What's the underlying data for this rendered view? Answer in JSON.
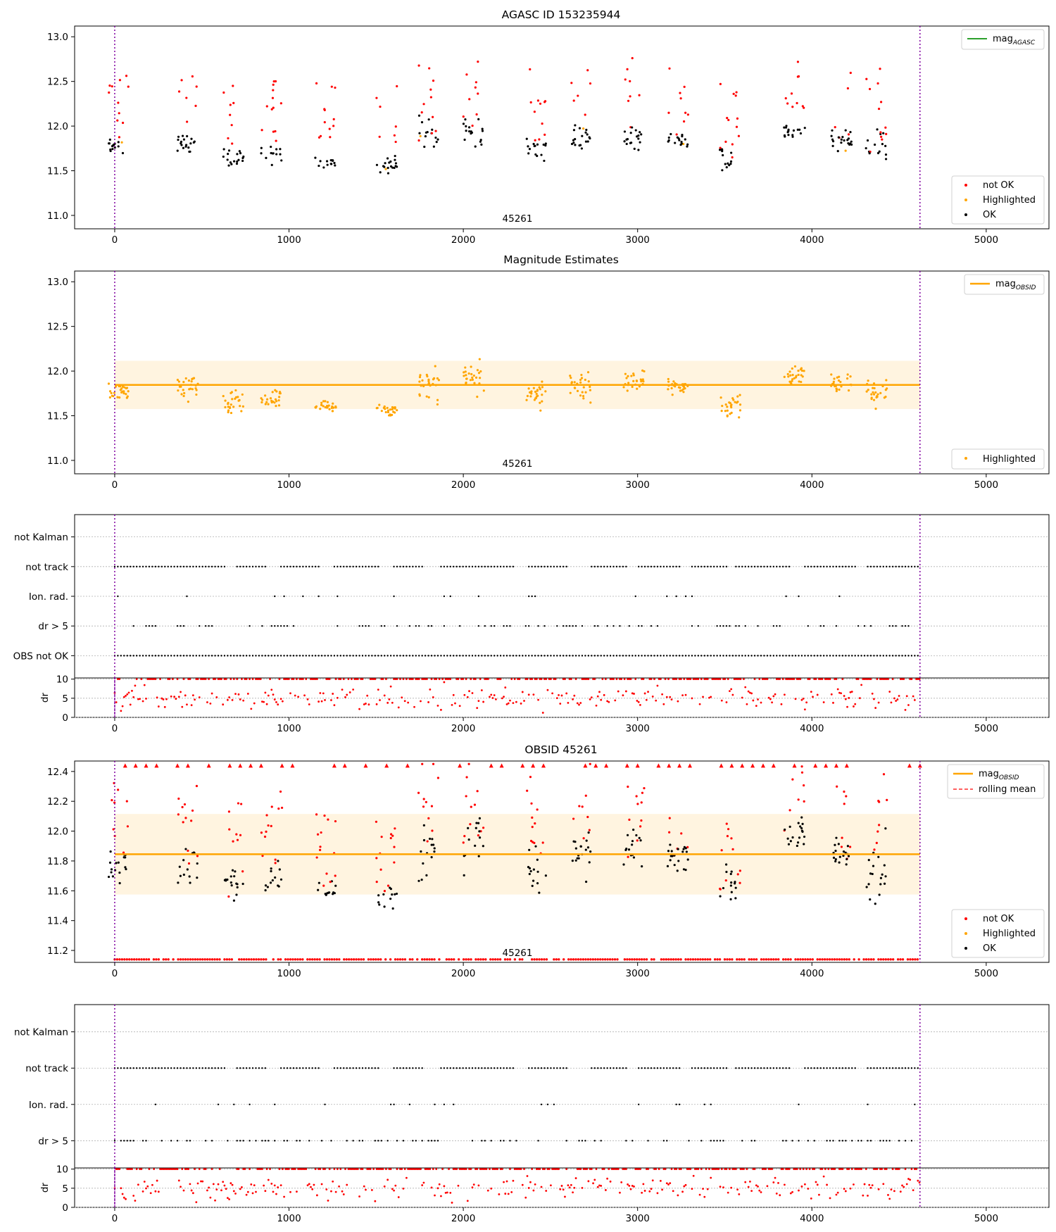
{
  "figure": {
    "obsid_label": "45261"
  },
  "chart_data": [
    {
      "type": "scatter",
      "title": "AGASC ID 153235944",
      "xlim": [
        -230,
        5360
      ],
      "ylim": [
        10.85,
        13.12
      ],
      "xticks": [
        0,
        1000,
        2000,
        3000,
        4000,
        5000
      ],
      "yticks": [
        11.0,
        11.5,
        12.0,
        12.5,
        13.0
      ],
      "ytick_labels": [
        "11.0",
        "11.5",
        "12.0",
        "12.5",
        "13.0"
      ],
      "vlines": [
        0,
        4620
      ],
      "annotation": {
        "text": "45261",
        "x": 2310,
        "y": 10.9
      },
      "legend_top": [
        {
          "label": "mag",
          "sub": "AGASC",
          "color": "#2ca02c"
        }
      ],
      "legend_bottom": [
        {
          "label": "not OK",
          "color": "#ff0000"
        },
        {
          "label": "Highlighted",
          "color": "#ffa500"
        },
        {
          "label": "OK",
          "color": "#000000"
        }
      ],
      "series_shape": "clusters",
      "ok_clusters": [
        [
          20,
          11.78,
          0.12
        ],
        [
          420,
          11.8,
          0.15
        ],
        [
          680,
          11.65,
          0.14
        ],
        [
          900,
          11.68,
          0.12
        ],
        [
          1210,
          11.6,
          0.07
        ],
        [
          1560,
          11.56,
          0.08
        ],
        [
          1800,
          11.85,
          0.2
        ],
        [
          2060,
          11.95,
          0.2
        ],
        [
          2420,
          11.75,
          0.15
        ],
        [
          2670,
          11.85,
          0.18
        ],
        [
          2980,
          11.88,
          0.15
        ],
        [
          3230,
          11.83,
          0.1
        ],
        [
          3530,
          11.62,
          0.14
        ],
        [
          3900,
          11.95,
          0.12
        ],
        [
          4170,
          11.85,
          0.15
        ],
        [
          4370,
          11.75,
          0.2
        ]
      ]
    },
    {
      "type": "scatter",
      "title": "Magnitude Estimates",
      "xlim": [
        -230,
        5360
      ],
      "ylim": [
        10.85,
        13.12
      ],
      "xticks": [
        0,
        1000,
        2000,
        3000,
        4000,
        5000
      ],
      "yticks": [
        11.0,
        11.5,
        12.0,
        12.5,
        13.0
      ],
      "ytick_labels": [
        "11.0",
        "11.5",
        "12.0",
        "12.5",
        "13.0"
      ],
      "vlines": [
        0,
        4620
      ],
      "hline": {
        "y": 11.845,
        "x0": 0,
        "x1": 4620,
        "color": "#ffa500"
      },
      "band": {
        "y0": 11.575,
        "y1": 12.115
      },
      "annotation": {
        "text": "45261",
        "x": 2310,
        "y": 10.9
      },
      "legend_top": [
        {
          "label": "mag",
          "sub": "OBSID",
          "color": "#ffa500"
        }
      ],
      "legend_bottom": [
        {
          "label": "Highlighted",
          "color": "#ffa500"
        }
      ]
    },
    {
      "type": "flags",
      "xlim": [
        -230,
        5360
      ],
      "categories": [
        "not Kalman",
        "not track",
        "Ion. rad.",
        "dr > 5",
        "OBS not OK"
      ],
      "dr_panel": {
        "ylabel": "dr",
        "yticks": [
          0,
          5,
          10
        ],
        "ylim": [
          0,
          10.3
        ]
      },
      "xticks": [
        0,
        1000,
        2000,
        3000,
        4000,
        5000
      ],
      "vlines": [
        0,
        4620
      ]
    },
    {
      "type": "scatter",
      "title": "OBSID 45261",
      "xlim": [
        -230,
        5360
      ],
      "ylim": [
        11.12,
        12.47
      ],
      "xticks": [
        0,
        1000,
        2000,
        3000,
        4000,
        5000
      ],
      "yticks": [
        11.2,
        11.4,
        11.6,
        11.8,
        12.0,
        12.2,
        12.4
      ],
      "ytick_labels": [
        "11.2",
        "11.4",
        "11.6",
        "11.8",
        "12.0",
        "12.2",
        "12.4"
      ],
      "vlines": [
        0,
        4620
      ],
      "hline": {
        "y": 11.845,
        "x0": 0,
        "x1": 4620,
        "color": "#ffa500"
      },
      "band": {
        "y0": 11.575,
        "y1": 12.115
      },
      "annotation": {
        "text": "45261",
        "x": 2310,
        "y": 11.15
      },
      "legend_top": [
        {
          "label": "mag",
          "sub": "OBSID",
          "color": "#ffa500"
        },
        {
          "label": "rolling mean",
          "color": "#ff0000",
          "dashed": true
        }
      ],
      "legend_bottom": [
        {
          "label": "not OK",
          "color": "#ff0000"
        },
        {
          "label": "Highlighted",
          "color": "#ffa500"
        },
        {
          "label": "OK",
          "color": "#000000"
        }
      ]
    },
    {
      "type": "flags",
      "xlim": [
        -230,
        5360
      ],
      "categories": [
        "not Kalman",
        "not track",
        "Ion. rad.",
        "dr > 5"
      ],
      "dr_panel": {
        "ylabel": "dr",
        "yticks": [
          0,
          5,
          10
        ],
        "ylim": [
          0,
          10.3
        ]
      },
      "xticks": [
        0,
        1000,
        2000,
        3000,
        4000,
        5000
      ],
      "vlines": [
        0,
        4620
      ]
    }
  ]
}
